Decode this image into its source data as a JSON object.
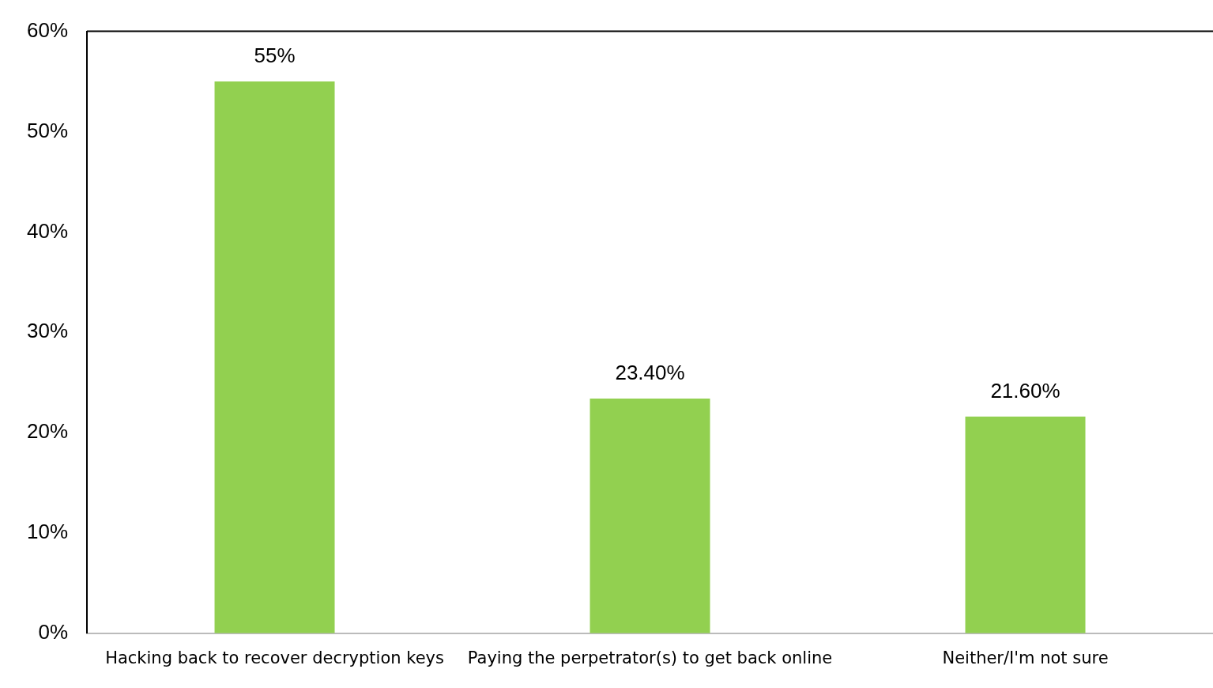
{
  "chart_data": {
    "type": "bar",
    "categories": [
      "Hacking back to recover decryption keys",
      "Paying the perpetrator(s) to get back online",
      "Neither/I'm not sure"
    ],
    "values": [
      55,
      23.4,
      21.6
    ],
    "value_labels": [
      "55%",
      "23.40%",
      "21.60%"
    ],
    "color": "#92d050",
    "ylim": [
      0,
      60
    ],
    "yticks": [
      {
        "value": 0,
        "label": "0%"
      },
      {
        "value": 10,
        "label": "10%"
      },
      {
        "value": 20,
        "label": "20%"
      },
      {
        "value": 30,
        "label": "30%"
      },
      {
        "value": 40,
        "label": "40%"
      },
      {
        "value": 50,
        "label": "50%"
      },
      {
        "value": 60,
        "label": "60%"
      }
    ],
    "grid": false,
    "legend": false
  }
}
